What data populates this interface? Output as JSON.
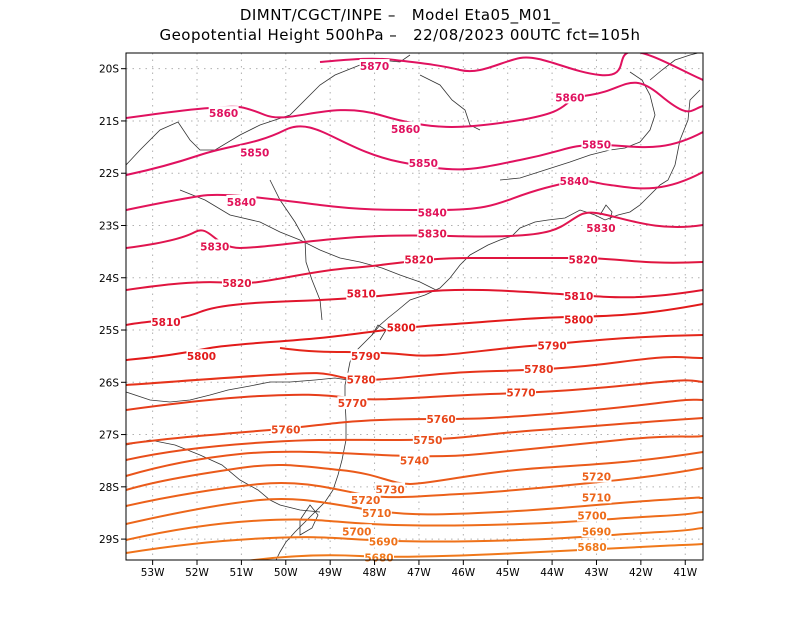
{
  "header": {
    "line1": "DIMNT/CGCT/INPE –   Model Eta05_M01_",
    "line2": "Geopotential Height 500hPa –   22/08/2023 00UTC fct=105h"
  },
  "map": {
    "lon_range": [
      -53.6,
      -40.6
    ],
    "lat_range": [
      -29.4,
      -19.7
    ],
    "contour_interval": 10,
    "contour_levels": [
      5680,
      5690,
      5700,
      5710,
      5720,
      5730,
      5740,
      5750,
      5760,
      5770,
      5780,
      5790,
      5800,
      5810,
      5820,
      5830,
      5840,
      5850,
      5860,
      5870
    ],
    "x_ticks": [
      {
        "lon": -53,
        "label": "53W"
      },
      {
        "lon": -52,
        "label": "52W"
      },
      {
        "lon": -51,
        "label": "51W"
      },
      {
        "lon": -50,
        "label": "50W"
      },
      {
        "lon": -49,
        "label": "49W"
      },
      {
        "lon": -48,
        "label": "48W"
      },
      {
        "lon": -47,
        "label": "47W"
      },
      {
        "lon": -46,
        "label": "46W"
      },
      {
        "lon": -45,
        "label": "45W"
      },
      {
        "lon": -44,
        "label": "44W"
      },
      {
        "lon": -43,
        "label": "43W"
      },
      {
        "lon": -42,
        "label": "42W"
      },
      {
        "lon": -41,
        "label": "41W"
      }
    ],
    "y_ticks": [
      {
        "lat": -20,
        "label": "20S"
      },
      {
        "lat": -21,
        "label": "21S"
      },
      {
        "lat": -22,
        "label": "22S"
      },
      {
        "lat": -23,
        "label": "23S"
      },
      {
        "lat": -24,
        "label": "24S"
      },
      {
        "lat": -25,
        "label": "25S"
      },
      {
        "lat": -26,
        "label": "26S"
      },
      {
        "lat": -27,
        "label": "27S"
      },
      {
        "lat": -28,
        "label": "28S"
      },
      {
        "lat": -29,
        "label": "29S"
      }
    ],
    "contour_labels": [
      {
        "text": "5870",
        "lon": -48.0,
        "lat": -19.95,
        "color": "#e0115f"
      },
      {
        "text": "5860",
        "lon": -51.4,
        "lat": -20.85,
        "color": "#e0115f"
      },
      {
        "text": "5860",
        "lon": -47.3,
        "lat": -21.15,
        "color": "#e0115f"
      },
      {
        "text": "5860",
        "lon": -43.6,
        "lat": -20.55,
        "color": "#e0115f"
      },
      {
        "text": "5850",
        "lon": -50.7,
        "lat": -21.6,
        "color": "#e0115f"
      },
      {
        "text": "5850",
        "lon": -46.9,
        "lat": -21.8,
        "color": "#e0115f"
      },
      {
        "text": "5850",
        "lon": -43.0,
        "lat": -21.45,
        "color": "#e0115f"
      },
      {
        "text": "5840",
        "lon": -51.0,
        "lat": -22.55,
        "color": "#e2145a"
      },
      {
        "text": "5840",
        "lon": -46.7,
        "lat": -22.75,
        "color": "#e2145a"
      },
      {
        "text": "5840",
        "lon": -43.5,
        "lat": -22.15,
        "color": "#e2145a"
      },
      {
        "text": "5830",
        "lon": -51.6,
        "lat": -23.4,
        "color": "#e0154f"
      },
      {
        "text": "5830",
        "lon": -46.7,
        "lat": -23.15,
        "color": "#e0154f"
      },
      {
        "text": "5830",
        "lon": -42.9,
        "lat": -23.05,
        "color": "#e0154f"
      },
      {
        "text": "5820",
        "lon": -51.1,
        "lat": -24.1,
        "color": "#e0153f"
      },
      {
        "text": "5820",
        "lon": -47.0,
        "lat": -23.65,
        "color": "#e0153f"
      },
      {
        "text": "5820",
        "lon": -43.3,
        "lat": -23.65,
        "color": "#e0153f"
      },
      {
        "text": "5810",
        "lon": -52.7,
        "lat": -24.85,
        "color": "#e0152d"
      },
      {
        "text": "5810",
        "lon": -48.3,
        "lat": -24.3,
        "color": "#e0152d"
      },
      {
        "text": "5810",
        "lon": -43.4,
        "lat": -24.35,
        "color": "#e0152d"
      },
      {
        "text": "5800",
        "lon": -51.9,
        "lat": -25.5,
        "color": "#e21a1a"
      },
      {
        "text": "5800",
        "lon": -47.4,
        "lat": -24.95,
        "color": "#e21a1a"
      },
      {
        "text": "5800",
        "lon": -43.4,
        "lat": -24.8,
        "color": "#e21a1a"
      },
      {
        "text": "5790",
        "lon": -48.2,
        "lat": -25.5,
        "color": "#e4261a"
      },
      {
        "text": "5790",
        "lon": -44.0,
        "lat": -25.3,
        "color": "#e4261a"
      },
      {
        "text": "5780",
        "lon": -48.3,
        "lat": -25.95,
        "color": "#e6331a"
      },
      {
        "text": "5780",
        "lon": -44.3,
        "lat": -25.75,
        "color": "#e6331a"
      },
      {
        "text": "5770",
        "lon": -48.5,
        "lat": -26.4,
        "color": "#e63d1a"
      },
      {
        "text": "5770",
        "lon": -44.7,
        "lat": -26.2,
        "color": "#e63d1a"
      },
      {
        "text": "5760",
        "lon": -50.0,
        "lat": -26.9,
        "color": "#e8471a"
      },
      {
        "text": "5760",
        "lon": -46.5,
        "lat": -26.7,
        "color": "#e8471a"
      },
      {
        "text": "5750",
        "lon": -46.8,
        "lat": -27.1,
        "color": "#e84d1a"
      },
      {
        "text": "5740",
        "lon": -47.1,
        "lat": -27.5,
        "color": "#ea541a"
      },
      {
        "text": "5730",
        "lon": -47.65,
        "lat": -28.05,
        "color": "#ea5a1a"
      },
      {
        "text": "5720",
        "lon": -48.2,
        "lat": -28.25,
        "color": "#ec601a"
      },
      {
        "text": "5720",
        "lon": -43.0,
        "lat": -27.8,
        "color": "#ec601a"
      },
      {
        "text": "5710",
        "lon": -47.95,
        "lat": -28.5,
        "color": "#ec661a"
      },
      {
        "text": "5710",
        "lon": -43.0,
        "lat": -28.2,
        "color": "#ec661a"
      },
      {
        "text": "5700",
        "lon": -48.4,
        "lat": -28.85,
        "color": "#ee6c1a"
      },
      {
        "text": "5700",
        "lon": -43.1,
        "lat": -28.55,
        "color": "#ee6c1a"
      },
      {
        "text": "5690",
        "lon": -47.8,
        "lat": -29.05,
        "color": "#ef721a"
      },
      {
        "text": "5690",
        "lon": -43.0,
        "lat": -28.85,
        "color": "#ef721a"
      },
      {
        "text": "5680",
        "lon": -47.9,
        "lat": -29.35,
        "color": "#f0781a"
      },
      {
        "text": "5680",
        "lon": -43.1,
        "lat": -29.15,
        "color": "#f0781a"
      }
    ]
  }
}
